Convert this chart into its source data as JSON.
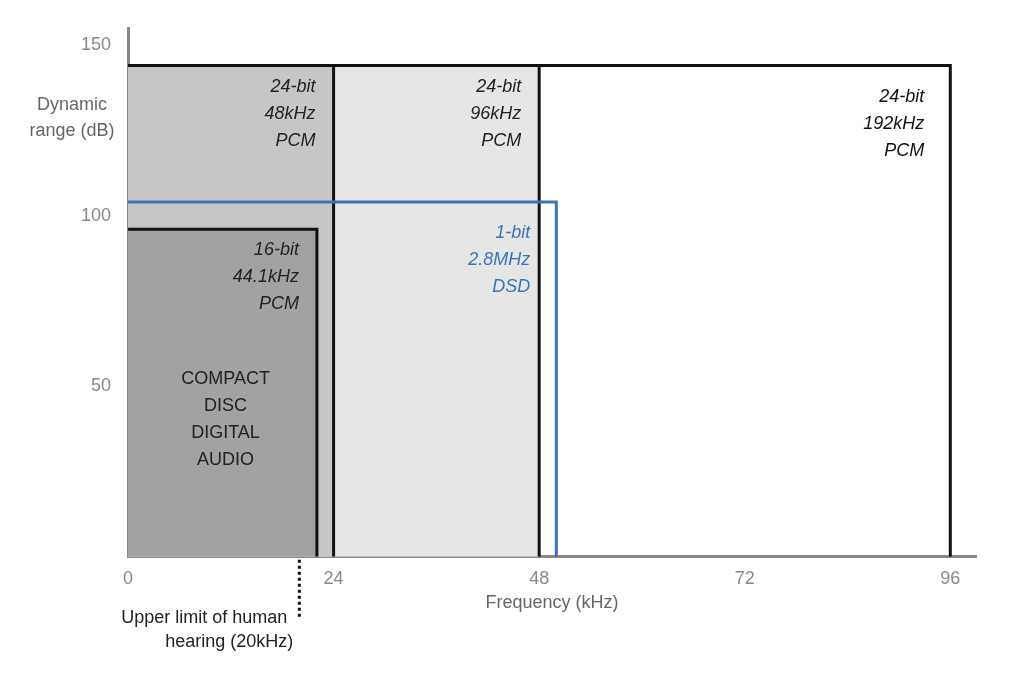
{
  "chart_data": {
    "type": "area",
    "xlabel": "Frequency (kHz)",
    "ylabel": "Dynamic range (dB)",
    "xlim": [
      0,
      99
    ],
    "xticks": [
      0,
      24,
      48,
      72,
      96
    ],
    "ylim": [
      0,
      155
    ],
    "yticks": [
      50,
      100,
      150
    ],
    "grid": false,
    "legend": false,
    "series": [
      {
        "name": "1-bit 2.8MHz DSD",
        "type": "line",
        "color": "#3a74b8",
        "x": [
          0,
          50,
          50
        ],
        "values": [
          104,
          104,
          0
        ]
      },
      {
        "name": "16-bit 44.1kHz PCM",
        "color": "#a2a2a2",
        "x": [
          0,
          22.05,
          22.05
        ],
        "values": [
          96,
          96,
          0
        ]
      },
      {
        "name": "24-bit 48kHz PCM",
        "color": "#c6c6c6",
        "x": [
          0,
          24,
          24
        ],
        "values": [
          144,
          144,
          0
        ]
      },
      {
        "name": "24-bit 96kHz PCM",
        "color": "#e6e6e6",
        "x": [
          0,
          48,
          48
        ],
        "values": [
          144,
          144,
          0
        ]
      },
      {
        "name": "24-bit 192kHz PCM",
        "type": "line",
        "color": "#111111",
        "x": [
          0,
          96,
          96
        ],
        "values": [
          144,
          144,
          0
        ]
      }
    ],
    "annotations": [
      "COMPACT DISC DIGITAL AUDIO"
    ],
    "ref_lines": [
      {
        "axis": "x",
        "value": 20,
        "label": "Upper limit of human hearing (20kHz)",
        "line_style": "dotted"
      }
    ]
  }
}
